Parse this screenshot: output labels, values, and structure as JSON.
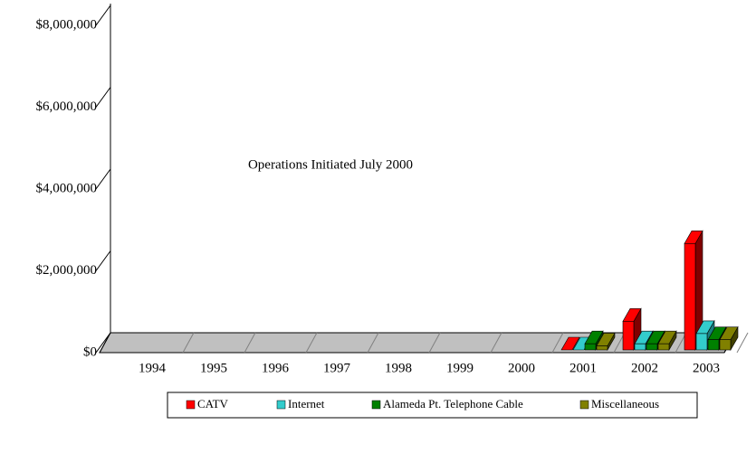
{
  "chart_data": {
    "type": "bar3d",
    "annotation": "Operations Initiated July 2000",
    "categories": [
      "1994",
      "1995",
      "1996",
      "1997",
      "1998",
      "1999",
      "2000",
      "2001",
      "2002",
      "2003"
    ],
    "series": [
      {
        "name": "CATV",
        "color": "#ff0000",
        "values": [
          null,
          null,
          null,
          null,
          null,
          null,
          null,
          0,
          700000,
          2600000
        ]
      },
      {
        "name": "Internet",
        "color": "#33cccc",
        "values": [
          null,
          null,
          null,
          null,
          null,
          null,
          null,
          0,
          150000,
          400000
        ]
      },
      {
        "name": "Alameda Pt. Telephone Cable",
        "color": "#008000",
        "values": [
          null,
          null,
          null,
          null,
          null,
          null,
          null,
          150000,
          150000,
          250000
        ]
      },
      {
        "name": "Miscellaneous",
        "color": "#808000",
        "values": [
          null,
          null,
          null,
          null,
          null,
          null,
          null,
          100000,
          150000,
          250000
        ]
      }
    ],
    "ylim": [
      0,
      8000000
    ],
    "yticks": [
      {
        "value": 0,
        "label": "$0"
      },
      {
        "value": 2000000,
        "label": "$2,000,000"
      },
      {
        "value": 4000000,
        "label": "$4,000,000"
      },
      {
        "value": 6000000,
        "label": "$6,000,000"
      },
      {
        "value": 8000000,
        "label": "$8,000,000"
      }
    ],
    "legend": "bottom"
  }
}
